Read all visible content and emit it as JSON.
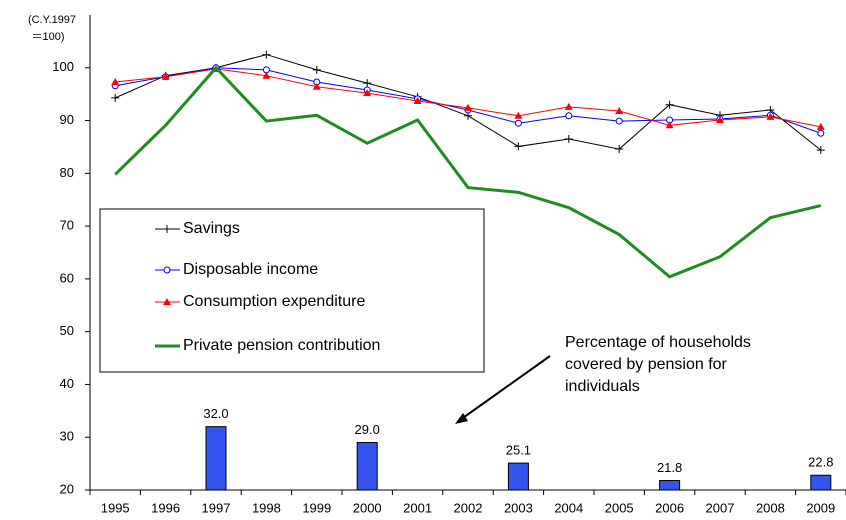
{
  "chart_data": {
    "type": "line",
    "y_axis_label": [
      "(C.Y.1997",
      "＝100)"
    ],
    "categories": [
      "1995",
      "1996",
      "1997",
      "1998",
      "1999",
      "2000",
      "2001",
      "2002",
      "2003",
      "2004",
      "2005",
      "2006",
      "2007",
      "2008",
      "2009"
    ],
    "ylim": [
      20,
      110
    ],
    "yticks": [
      20,
      30,
      40,
      50,
      60,
      70,
      80,
      90,
      100
    ],
    "series": [
      {
        "name": "Savings",
        "color": "#000000",
        "marker": "plus",
        "values": [
          94.3,
          98.5,
          100,
          102.5,
          99.6,
          97.1,
          94.5,
          90.9,
          85.1,
          86.5,
          84.6,
          93.0,
          91.0,
          92.0,
          84.4
        ]
      },
      {
        "name": "Disposable income",
        "color": "#0000ff",
        "marker": "circle",
        "values": [
          96.6,
          98.3,
          100,
          99.6,
          97.3,
          95.8,
          94.1,
          92.0,
          89.5,
          90.9,
          89.9,
          90.1,
          90.3,
          91.0,
          87.6
        ]
      },
      {
        "name": "Consumption expenditure",
        "color": "#ff0000",
        "marker": "triangle",
        "values": [
          97.3,
          98.3,
          99.8,
          98.5,
          96.4,
          95.2,
          93.7,
          92.4,
          90.9,
          92.6,
          91.8,
          89.1,
          90.1,
          90.7,
          88.8
        ]
      },
      {
        "name": "Private pension contribution",
        "color": "#1e8c1e",
        "marker": "none",
        "values": [
          79.8,
          89.1,
          100,
          89.9,
          91.0,
          85.7,
          90.1,
          77.3,
          76.4,
          73.5,
          68.4,
          60.4,
          64.2,
          71.6,
          73.9
        ]
      }
    ],
    "bars": {
      "color": "#3355ee",
      "values": [
        null,
        null,
        32.0,
        null,
        null,
        29.0,
        null,
        null,
        25.1,
        null,
        null,
        21.8,
        null,
        null,
        22.8
      ],
      "value_labels": [
        null,
        null,
        "32.0",
        null,
        null,
        "29.0",
        null,
        null,
        "25.1",
        null,
        null,
        "21.8",
        null,
        null,
        "22.8"
      ]
    },
    "annotation": [
      "Percentage of households",
      "covered by pension for",
      "individuals"
    ]
  }
}
